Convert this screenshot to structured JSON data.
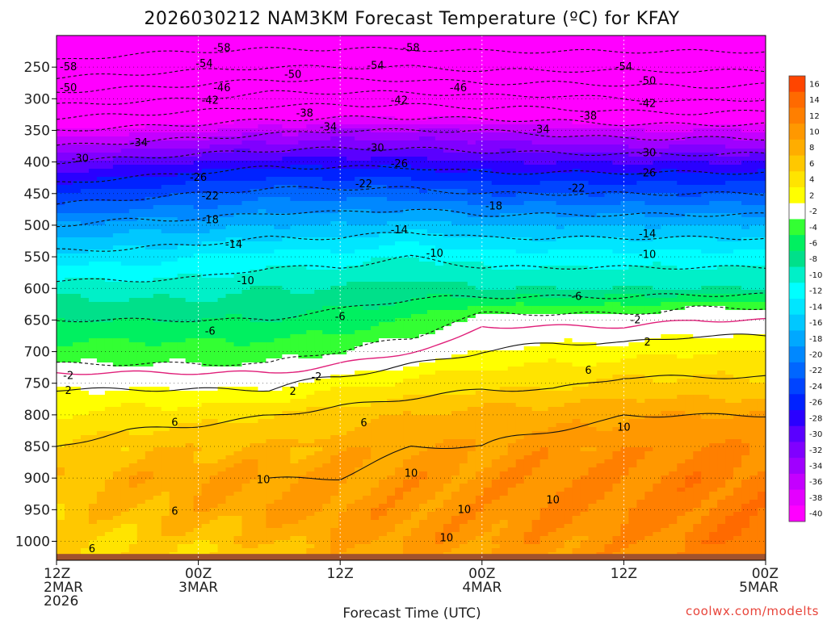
{
  "chart_data": {
    "type": "heatmap",
    "title": "2026030212 NAM3KM Forecast Temperature (ºC) for KFAY",
    "xlabel": "Forecast Time (UTC)",
    "ylabel": "",
    "credit": "coolwx.com/modelts",
    "x_hours": [
      0,
      60
    ],
    "x_ticks": [
      {
        "h": 0,
        "lines": [
          "12Z",
          "2MAR",
          "2026"
        ]
      },
      {
        "h": 12,
        "lines": [
          "00Z",
          "3MAR"
        ]
      },
      {
        "h": 24,
        "lines": [
          "12Z"
        ]
      },
      {
        "h": 36,
        "lines": [
          "00Z",
          "4MAR"
        ]
      },
      {
        "h": 48,
        "lines": [
          "12Z"
        ]
      },
      {
        "h": 60,
        "lines": [
          "00Z",
          "5MAR"
        ]
      }
    ],
    "y_range_hPa": [
      1030,
      200
    ],
    "y_ticks": [
      250,
      300,
      350,
      400,
      450,
      500,
      550,
      600,
      650,
      700,
      750,
      800,
      850,
      900,
      950,
      1000
    ],
    "surface_hPa": 1020,
    "colorbar": {
      "labels": [
        16,
        14,
        12,
        10,
        8,
        6,
        4,
        2,
        -2,
        -4,
        -6,
        -8,
        -10,
        -12,
        -14,
        -16,
        -18,
        -20,
        -22,
        -24,
        -26,
        -28,
        -30,
        -32,
        -34,
        -36,
        -38,
        -40
      ],
      "colors": [
        "#ff4500",
        "#ff6a00",
        "#ff7f00",
        "#ff9800",
        "#ffad00",
        "#ffc800",
        "#ffe400",
        "#ffff00",
        "#ffffff",
        "#33ff33",
        "#00f060",
        "#00e08a",
        "#00f0c8",
        "#00ffff",
        "#00e6ff",
        "#00c8ff",
        "#00a8ff",
        "#0088ff",
        "#0066ff",
        "#0044ff",
        "#0022ff",
        "#2a00ff",
        "#5a00ff",
        "#8000ff",
        "#a000ff",
        "#c400ff",
        "#e400ff",
        "#ff00ff"
      ]
    },
    "profiles": [
      {
        "h": 0,
        "lev": [
          [
            200,
            -62
          ],
          [
            250,
            -57
          ],
          [
            300,
            -48
          ],
          [
            350,
            -38
          ],
          [
            400,
            -30
          ],
          [
            450,
            -24
          ],
          [
            500,
            -18
          ],
          [
            550,
            -13
          ],
          [
            600,
            -9
          ],
          [
            650,
            -6
          ],
          [
            700,
            -3
          ],
          [
            720,
            -2
          ],
          [
            740,
            1
          ],
          [
            760,
            2
          ],
          [
            800,
            4
          ],
          [
            850,
            6
          ],
          [
            900,
            7
          ],
          [
            950,
            7
          ],
          [
            1000,
            6
          ],
          [
            1010,
            6
          ]
        ]
      },
      {
        "h": 6,
        "lev": [
          [
            200,
            -61
          ],
          [
            250,
            -56
          ],
          [
            300,
            -47
          ],
          [
            350,
            -37
          ],
          [
            400,
            -29
          ],
          [
            450,
            -23
          ],
          [
            500,
            -17
          ],
          [
            550,
            -13
          ],
          [
            600,
            -9
          ],
          [
            650,
            -6
          ],
          [
            700,
            -3
          ],
          [
            720,
            -2
          ],
          [
            740,
            1
          ],
          [
            760,
            2
          ],
          [
            800,
            5
          ],
          [
            850,
            7
          ],
          [
            900,
            9
          ],
          [
            950,
            8
          ],
          [
            1000,
            6
          ],
          [
            1010,
            6
          ]
        ]
      },
      {
        "h": 12,
        "lev": [
          [
            200,
            -61
          ],
          [
            250,
            -55
          ],
          [
            300,
            -46
          ],
          [
            350,
            -36
          ],
          [
            400,
            -28
          ],
          [
            450,
            -22
          ],
          [
            500,
            -17
          ],
          [
            550,
            -12
          ],
          [
            600,
            -9
          ],
          [
            650,
            -6
          ],
          [
            700,
            -3
          ],
          [
            720,
            -2
          ],
          [
            740,
            1
          ],
          [
            760,
            2
          ],
          [
            800,
            5
          ],
          [
            850,
            8
          ],
          [
            900,
            10
          ],
          [
            950,
            9
          ],
          [
            1000,
            7
          ],
          [
            1010,
            6
          ]
        ]
      },
      {
        "h": 18,
        "lev": [
          [
            200,
            -61
          ],
          [
            250,
            -54
          ],
          [
            300,
            -44
          ],
          [
            350,
            -35
          ],
          [
            400,
            -27
          ],
          [
            450,
            -21
          ],
          [
            500,
            -16
          ],
          [
            550,
            -11
          ],
          [
            600,
            -8
          ],
          [
            650,
            -6
          ],
          [
            700,
            -3
          ],
          [
            720,
            -2
          ],
          [
            740,
            1
          ],
          [
            760,
            2
          ],
          [
            800,
            6
          ],
          [
            850,
            8
          ],
          [
            900,
            10
          ],
          [
            950,
            10
          ],
          [
            1000,
            8
          ],
          [
            1010,
            7
          ]
        ]
      },
      {
        "h": 24,
        "lev": [
          [
            200,
            -61
          ],
          [
            250,
            -54
          ],
          [
            300,
            -44
          ],
          [
            350,
            -34
          ],
          [
            400,
            -27
          ],
          [
            450,
            -21
          ],
          [
            500,
            -16
          ],
          [
            550,
            -11
          ],
          [
            600,
            -8
          ],
          [
            650,
            -5
          ],
          [
            700,
            -2
          ],
          [
            720,
            0
          ],
          [
            740,
            2
          ],
          [
            760,
            4
          ],
          [
            800,
            7
          ],
          [
            850,
            9
          ],
          [
            900,
            10
          ],
          [
            950,
            11
          ],
          [
            1000,
            10
          ],
          [
            1010,
            9
          ]
        ]
      },
      {
        "h": 30,
        "lev": [
          [
            200,
            -61
          ],
          [
            250,
            -54
          ],
          [
            300,
            -44
          ],
          [
            350,
            -34
          ],
          [
            400,
            -27
          ],
          [
            450,
            -21
          ],
          [
            500,
            -15
          ],
          [
            550,
            -10
          ],
          [
            600,
            -7
          ],
          [
            650,
            -4
          ],
          [
            680,
            -2
          ],
          [
            700,
            0
          ],
          [
            740,
            4
          ],
          [
            760,
            5
          ],
          [
            800,
            8
          ],
          [
            850,
            10
          ],
          [
            900,
            11
          ],
          [
            950,
            11
          ],
          [
            1000,
            11
          ],
          [
            1010,
            10
          ]
        ]
      },
      {
        "h": 36,
        "lev": [
          [
            200,
            -61
          ],
          [
            250,
            -55
          ],
          [
            300,
            -45
          ],
          [
            350,
            -34
          ],
          [
            400,
            -28
          ],
          [
            450,
            -22
          ],
          [
            500,
            -16
          ],
          [
            550,
            -11
          ],
          [
            600,
            -8
          ],
          [
            640,
            -2
          ],
          [
            660,
            0
          ],
          [
            700,
            2
          ],
          [
            740,
            5
          ],
          [
            760,
            6
          ],
          [
            800,
            9
          ],
          [
            850,
            10
          ],
          [
            900,
            11
          ],
          [
            950,
            11
          ],
          [
            1000,
            11
          ],
          [
            1010,
            10
          ]
        ]
      },
      {
        "h": 42,
        "lev": [
          [
            200,
            -61
          ],
          [
            250,
            -55
          ],
          [
            300,
            -45
          ],
          [
            350,
            -35
          ],
          [
            400,
            -28
          ],
          [
            450,
            -22
          ],
          [
            500,
            -16
          ],
          [
            550,
            -11
          ],
          [
            600,
            -8
          ],
          [
            640,
            -2
          ],
          [
            660,
            0
          ],
          [
            700,
            3
          ],
          [
            740,
            5
          ],
          [
            760,
            6
          ],
          [
            800,
            9
          ],
          [
            850,
            11
          ],
          [
            900,
            12
          ],
          [
            950,
            12
          ],
          [
            1000,
            11
          ],
          [
            1010,
            11
          ]
        ]
      },
      {
        "h": 48,
        "lev": [
          [
            200,
            -61
          ],
          [
            250,
            -55
          ],
          [
            300,
            -46
          ],
          [
            350,
            -36
          ],
          [
            400,
            -28
          ],
          [
            450,
            -22
          ],
          [
            500,
            -16
          ],
          [
            550,
            -11
          ],
          [
            600,
            -8
          ],
          [
            640,
            -2
          ],
          [
            660,
            0
          ],
          [
            700,
            3
          ],
          [
            740,
            6
          ],
          [
            760,
            7
          ],
          [
            800,
            10
          ],
          [
            850,
            11
          ],
          [
            900,
            12
          ],
          [
            950,
            12
          ],
          [
            1000,
            11
          ],
          [
            1010,
            11
          ]
        ]
      },
      {
        "h": 54,
        "lev": [
          [
            200,
            -61
          ],
          [
            250,
            -55
          ],
          [
            300,
            -47
          ],
          [
            350,
            -36
          ],
          [
            400,
            -28
          ],
          [
            450,
            -22
          ],
          [
            500,
            -16
          ],
          [
            550,
            -11
          ],
          [
            600,
            -8
          ],
          [
            630,
            -2
          ],
          [
            650,
            0
          ],
          [
            700,
            4
          ],
          [
            740,
            6
          ],
          [
            760,
            7
          ],
          [
            800,
            10
          ],
          [
            850,
            12
          ],
          [
            900,
            13
          ],
          [
            950,
            13
          ],
          [
            1000,
            13
          ],
          [
            1010,
            12
          ]
        ]
      },
      {
        "h": 60,
        "lev": [
          [
            200,
            -61
          ],
          [
            250,
            -55
          ],
          [
            300,
            -46
          ],
          [
            350,
            -36
          ],
          [
            400,
            -28
          ],
          [
            450,
            -22
          ],
          [
            500,
            -16
          ],
          [
            550,
            -11
          ],
          [
            600,
            -8
          ],
          [
            630,
            -2
          ],
          [
            650,
            0
          ],
          [
            700,
            4
          ],
          [
            740,
            6
          ],
          [
            760,
            7
          ],
          [
            800,
            10
          ],
          [
            850,
            12
          ],
          [
            900,
            13
          ],
          [
            950,
            13
          ],
          [
            1000,
            14
          ],
          [
            1010,
            14
          ]
        ]
      }
    ],
    "contour_labels": [
      {
        "h": 14,
        "p": 220,
        "text": "-58"
      },
      {
        "h": 30,
        "p": 220,
        "text": "-58"
      },
      {
        "h": 1,
        "p": 250,
        "text": "-58"
      },
      {
        "h": 12.5,
        "p": 245,
        "text": "-54"
      },
      {
        "h": 27,
        "p": 248,
        "text": "-54"
      },
      {
        "h": 48,
        "p": 250,
        "text": "-54"
      },
      {
        "h": 20,
        "p": 262,
        "text": "-50"
      },
      {
        "h": 1,
        "p": 283,
        "text": "-50"
      },
      {
        "h": 50,
        "p": 272,
        "text": "-50"
      },
      {
        "h": 14,
        "p": 283,
        "text": "-46"
      },
      {
        "h": 34,
        "p": 283,
        "text": "-46"
      },
      {
        "h": 13,
        "p": 303,
        "text": "-42"
      },
      {
        "h": 29,
        "p": 303,
        "text": "-42"
      },
      {
        "h": 50,
        "p": 308,
        "text": "-42"
      },
      {
        "h": 21,
        "p": 323,
        "text": "-38"
      },
      {
        "h": 45,
        "p": 328,
        "text": "-38"
      },
      {
        "h": 23,
        "p": 345,
        "text": "-34"
      },
      {
        "h": 7,
        "p": 370,
        "text": "-34"
      },
      {
        "h": 41,
        "p": 349,
        "text": "-34"
      },
      {
        "h": 27,
        "p": 378,
        "text": "-30"
      },
      {
        "h": 2,
        "p": 395,
        "text": "-30"
      },
      {
        "h": 50,
        "p": 386,
        "text": "-30"
      },
      {
        "h": 29,
        "p": 403,
        "text": "-26"
      },
      {
        "h": 12,
        "p": 425,
        "text": "-26"
      },
      {
        "h": 50,
        "p": 418,
        "text": "-26"
      },
      {
        "h": 26,
        "p": 435,
        "text": "-22"
      },
      {
        "h": 13,
        "p": 454,
        "text": "-22"
      },
      {
        "h": 44,
        "p": 442,
        "text": "-22"
      },
      {
        "h": 13,
        "p": 492,
        "text": "-18"
      },
      {
        "h": 37,
        "p": 470,
        "text": "-18"
      },
      {
        "h": 15,
        "p": 531,
        "text": "-14"
      },
      {
        "h": 29,
        "p": 508,
        "text": "-14"
      },
      {
        "h": 50,
        "p": 514,
        "text": "-14"
      },
      {
        "h": 16,
        "p": 588,
        "text": "-10"
      },
      {
        "h": 32,
        "p": 545,
        "text": "-10"
      },
      {
        "h": 50,
        "p": 547,
        "text": "-10"
      },
      {
        "h": 13,
        "p": 668,
        "text": "-6"
      },
      {
        "h": 24,
        "p": 645,
        "text": "-6"
      },
      {
        "h": 44,
        "p": 613,
        "text": "-6"
      },
      {
        "h": 1,
        "p": 738,
        "text": "-2"
      },
      {
        "h": 22,
        "p": 740,
        "text": "-2"
      },
      {
        "h": 49,
        "p": 650,
        "text": "-2"
      },
      {
        "h": 1,
        "p": 762,
        "text": "2"
      },
      {
        "h": 20,
        "p": 763,
        "text": "2"
      },
      {
        "h": 50,
        "p": 685,
        "text": "2"
      },
      {
        "h": 10,
        "p": 812,
        "text": "6"
      },
      {
        "h": 26,
        "p": 813,
        "text": "6"
      },
      {
        "h": 45,
        "p": 730,
        "text": "6"
      },
      {
        "h": 10,
        "p": 953,
        "text": "6"
      },
      {
        "h": 3,
        "p": 1012,
        "text": "6"
      },
      {
        "h": 17.5,
        "p": 903,
        "text": "10"
      },
      {
        "h": 30,
        "p": 893,
        "text": "10"
      },
      {
        "h": 34.5,
        "p": 950,
        "text": "10"
      },
      {
        "h": 42,
        "p": 935,
        "text": "10"
      },
      {
        "h": 48,
        "p": 820,
        "text": "10"
      },
      {
        "h": 33,
        "p": 995,
        "text": "10"
      }
    ]
  }
}
